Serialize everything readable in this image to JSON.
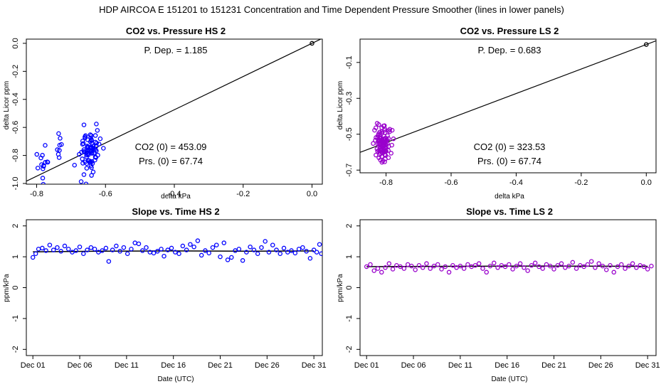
{
  "figure": {
    "title": "HDP    AIRCOA E    151201 to 151231    Concentration and Time Dependent Pressure Smoother (lines in lower panels)"
  },
  "chart_data": [
    {
      "id": "hs-pressure",
      "type": "scatter",
      "title": "CO2 vs. Pressure HS 2",
      "xlabel": "delta kPa",
      "ylabel": "delta Licor ppm",
      "xlim": [
        -0.83,
        0.03
      ],
      "ylim": [
        -1.005,
        0.03
      ],
      "xticks": [
        -0.8,
        -0.6,
        -0.4,
        -0.2,
        0.0
      ],
      "xtick_labels": [
        "-0.8",
        "-0.6",
        "-0.4",
        "-0.2",
        "0.0"
      ],
      "yticks": [
        0.0,
        -0.2,
        -0.4,
        -0.6,
        -0.8,
        -1.0
      ],
      "ytick_labels": [
        "0.0",
        "-0.2",
        "-0.4",
        "-0.6",
        "-0.8",
        "-1.0"
      ],
      "point_color": "#0000ff",
      "origin_point": [
        0.0,
        0.0
      ],
      "fit_line": {
        "slope": 1.185,
        "intercept": 0.0
      },
      "annotations": {
        "dep": "P. Dep. =  1.185",
        "co2": "CO2 (0) =  453.09",
        "prs": "Prs. (0) =  67.74"
      },
      "clusters": [
        {
          "cx": -0.78,
          "sx": 0.012,
          "cy": -0.84,
          "sy": 0.07,
          "n": 14
        },
        {
          "cx": -0.735,
          "sx": 0.004,
          "cy": -0.72,
          "sy": 0.06,
          "n": 8
        },
        {
          "cx": -0.645,
          "sx": 0.014,
          "cy": -0.77,
          "sy": 0.08,
          "n": 80
        }
      ]
    },
    {
      "id": "ls-pressure",
      "type": "scatter",
      "title": "CO2 vs. Pressure LS 2",
      "xlabel": "delta kPa",
      "ylabel": "delta Licor ppm",
      "xlim": [
        -0.88,
        0.03
      ],
      "ylim": [
        -0.715,
        0.03
      ],
      "xticks": [
        -0.8,
        -0.6,
        -0.4,
        -0.2,
        0.0
      ],
      "xtick_labels": [
        "-0.8",
        "-0.6",
        "-0.4",
        "-0.2",
        "0.0"
      ],
      "yticks": [
        -0.1,
        -0.3,
        -0.5,
        -0.7
      ],
      "ytick_labels": [
        "-0.1",
        "-0.3",
        "-0.5",
        "-0.7"
      ],
      "point_color": "#9900cc",
      "origin_point": [
        0.0,
        0.0
      ],
      "fit_line": {
        "slope": 0.683,
        "intercept": 0.0
      },
      "annotations": {
        "dep": "P. Dep. =  0.683",
        "co2": "CO2 (0) =  323.53",
        "prs": "Prs. (0) =  67.74"
      },
      "clusters": [
        {
          "cx": -0.81,
          "sx": 0.012,
          "cy": -0.55,
          "sy": 0.05,
          "n": 110
        }
      ]
    },
    {
      "id": "hs-slope",
      "type": "scatter",
      "title": "Slope vs. Time HS 2",
      "xlabel": "Date (UTC)",
      "ylabel": "ppm/kPa",
      "xlim": [
        0.3,
        31.9
      ],
      "ylim": [
        -2.2,
        2.2
      ],
      "xticks": [
        1,
        6,
        11,
        16,
        21,
        26,
        31
      ],
      "xtick_labels": [
        "Dec 01",
        "Dec 06",
        "Dec 11",
        "Dec 16",
        "Dec 21",
        "Dec 26",
        "Dec 31"
      ],
      "yticks": [
        2,
        1,
        0,
        -1,
        -2
      ],
      "ytick_labels": [
        "2",
        "1",
        "0",
        "-1",
        "-2"
      ],
      "point_color": "#0000ff",
      "smoother": [
        [
          1.0,
          1.16
        ],
        [
          8.0,
          1.18
        ],
        [
          16.0,
          1.19
        ],
        [
          24.0,
          1.18
        ],
        [
          31.0,
          1.19
        ]
      ],
      "series": [
        {
          "x": 1.0,
          "y": 0.98
        },
        {
          "x": 1.3,
          "y": 1.1
        },
        {
          "x": 1.6,
          "y": 1.25
        },
        {
          "x": 2.0,
          "y": 1.28
        },
        {
          "x": 2.4,
          "y": 1.2
        },
        {
          "x": 2.8,
          "y": 1.38
        },
        {
          "x": 3.2,
          "y": 1.22
        },
        {
          "x": 3.6,
          "y": 1.3
        },
        {
          "x": 4.0,
          "y": 1.18
        },
        {
          "x": 4.4,
          "y": 1.35
        },
        {
          "x": 4.8,
          "y": 1.25
        },
        {
          "x": 5.2,
          "y": 1.15
        },
        {
          "x": 5.6,
          "y": 1.2
        },
        {
          "x": 6.0,
          "y": 1.32
        },
        {
          "x": 6.4,
          "y": 1.1
        },
        {
          "x": 6.8,
          "y": 1.22
        },
        {
          "x": 7.2,
          "y": 1.3
        },
        {
          "x": 7.6,
          "y": 1.25
        },
        {
          "x": 8.0,
          "y": 1.15
        },
        {
          "x": 8.4,
          "y": 1.2
        },
        {
          "x": 8.8,
          "y": 1.28
        },
        {
          "x": 9.1,
          "y": 0.85
        },
        {
          "x": 9.5,
          "y": 1.22
        },
        {
          "x": 9.9,
          "y": 1.35
        },
        {
          "x": 10.3,
          "y": 1.18
        },
        {
          "x": 10.7,
          "y": 1.3
        },
        {
          "x": 11.1,
          "y": 1.1
        },
        {
          "x": 11.5,
          "y": 1.25
        },
        {
          "x": 11.9,
          "y": 1.45
        },
        {
          "x": 12.3,
          "y": 1.42
        },
        {
          "x": 12.7,
          "y": 1.2
        },
        {
          "x": 13.1,
          "y": 1.3
        },
        {
          "x": 13.5,
          "y": 1.15
        },
        {
          "x": 13.9,
          "y": 1.12
        },
        {
          "x": 14.3,
          "y": 1.18
        },
        {
          "x": 14.7,
          "y": 1.25
        },
        {
          "x": 15.0,
          "y": 1.02
        },
        {
          "x": 15.4,
          "y": 1.22
        },
        {
          "x": 15.8,
          "y": 1.28
        },
        {
          "x": 16.2,
          "y": 1.15
        },
        {
          "x": 16.6,
          "y": 1.1
        },
        {
          "x": 17.0,
          "y": 1.35
        },
        {
          "x": 17.4,
          "y": 1.22
        },
        {
          "x": 17.8,
          "y": 1.4
        },
        {
          "x": 18.2,
          "y": 1.32
        },
        {
          "x": 18.6,
          "y": 1.52
        },
        {
          "x": 19.0,
          "y": 1.05
        },
        {
          "x": 19.4,
          "y": 1.2
        },
        {
          "x": 19.8,
          "y": 1.12
        },
        {
          "x": 20.2,
          "y": 1.3
        },
        {
          "x": 20.6,
          "y": 1.38
        },
        {
          "x": 21.0,
          "y": 1.0
        },
        {
          "x": 21.4,
          "y": 1.45
        },
        {
          "x": 21.8,
          "y": 0.9
        },
        {
          "x": 22.2,
          "y": 0.98
        },
        {
          "x": 22.6,
          "y": 1.2
        },
        {
          "x": 23.0,
          "y": 1.25
        },
        {
          "x": 23.4,
          "y": 0.88
        },
        {
          "x": 23.8,
          "y": 1.15
        },
        {
          "x": 24.2,
          "y": 1.32
        },
        {
          "x": 24.6,
          "y": 1.22
        },
        {
          "x": 25.0,
          "y": 1.1
        },
        {
          "x": 25.4,
          "y": 1.3
        },
        {
          "x": 25.8,
          "y": 1.5
        },
        {
          "x": 26.2,
          "y": 1.15
        },
        {
          "x": 26.6,
          "y": 1.38
        },
        {
          "x": 27.0,
          "y": 1.22
        },
        {
          "x": 27.4,
          "y": 1.1
        },
        {
          "x": 27.8,
          "y": 1.28
        },
        {
          "x": 28.2,
          "y": 1.15
        },
        {
          "x": 28.6,
          "y": 1.2
        },
        {
          "x": 29.0,
          "y": 1.12
        },
        {
          "x": 29.4,
          "y": 1.25
        },
        {
          "x": 29.8,
          "y": 1.3
        },
        {
          "x": 30.2,
          "y": 1.18
        },
        {
          "x": 30.6,
          "y": 0.95
        },
        {
          "x": 31.0,
          "y": 1.22
        },
        {
          "x": 31.3,
          "y": 1.15
        },
        {
          "x": 31.6,
          "y": 1.4
        },
        {
          "x": 31.8,
          "y": 1.1
        }
      ]
    },
    {
      "id": "ls-slope",
      "type": "scatter",
      "title": "Slope vs. Time LS 2",
      "xlabel": "Date (UTC)",
      "ylabel": "ppm/kPa",
      "xlim": [
        0.3,
        31.9
      ],
      "ylim": [
        -2.2,
        2.2
      ],
      "xticks": [
        1,
        6,
        11,
        16,
        21,
        26,
        31
      ],
      "xtick_labels": [
        "Dec 01",
        "Dec 06",
        "Dec 11",
        "Dec 16",
        "Dec 21",
        "Dec 26",
        "Dec 31"
      ],
      "yticks": [
        2,
        1,
        0,
        -1,
        -2
      ],
      "ytick_labels": [
        "2",
        "1",
        "0",
        "-1",
        "-2"
      ],
      "point_color": "#9900cc",
      "smoother": [
        [
          1.0,
          0.68
        ],
        [
          10.0,
          0.69
        ],
        [
          20.0,
          0.7
        ],
        [
          31.0,
          0.69
        ]
      ],
      "series": [
        {
          "x": 1.0,
          "y": 0.68
        },
        {
          "x": 1.4,
          "y": 0.75
        },
        {
          "x": 1.8,
          "y": 0.55
        },
        {
          "x": 2.2,
          "y": 0.62
        },
        {
          "x": 2.6,
          "y": 0.5
        },
        {
          "x": 3.0,
          "y": 0.65
        },
        {
          "x": 3.4,
          "y": 0.78
        },
        {
          "x": 3.8,
          "y": 0.6
        },
        {
          "x": 4.2,
          "y": 0.72
        },
        {
          "x": 4.6,
          "y": 0.68
        },
        {
          "x": 5.0,
          "y": 0.62
        },
        {
          "x": 5.4,
          "y": 0.75
        },
        {
          "x": 5.8,
          "y": 0.7
        },
        {
          "x": 6.2,
          "y": 0.58
        },
        {
          "x": 6.6,
          "y": 0.72
        },
        {
          "x": 7.0,
          "y": 0.65
        },
        {
          "x": 7.4,
          "y": 0.78
        },
        {
          "x": 7.8,
          "y": 0.62
        },
        {
          "x": 8.2,
          "y": 0.7
        },
        {
          "x": 8.6,
          "y": 0.75
        },
        {
          "x": 9.0,
          "y": 0.6
        },
        {
          "x": 9.4,
          "y": 0.68
        },
        {
          "x": 9.8,
          "y": 0.5
        },
        {
          "x": 10.2,
          "y": 0.72
        },
        {
          "x": 10.6,
          "y": 0.65
        },
        {
          "x": 11.0,
          "y": 0.7
        },
        {
          "x": 11.4,
          "y": 0.62
        },
        {
          "x": 11.8,
          "y": 0.75
        },
        {
          "x": 12.2,
          "y": 0.68
        },
        {
          "x": 12.6,
          "y": 0.72
        },
        {
          "x": 13.0,
          "y": 0.78
        },
        {
          "x": 13.4,
          "y": 0.62
        },
        {
          "x": 13.8,
          "y": 0.5
        },
        {
          "x": 14.2,
          "y": 0.7
        },
        {
          "x": 14.6,
          "y": 0.8
        },
        {
          "x": 15.0,
          "y": 0.65
        },
        {
          "x": 15.4,
          "y": 0.72
        },
        {
          "x": 15.8,
          "y": 0.68
        },
        {
          "x": 16.2,
          "y": 0.75
        },
        {
          "x": 16.6,
          "y": 0.6
        },
        {
          "x": 17.0,
          "y": 0.7
        },
        {
          "x": 17.4,
          "y": 0.78
        },
        {
          "x": 17.8,
          "y": 0.65
        },
        {
          "x": 18.2,
          "y": 0.55
        },
        {
          "x": 18.6,
          "y": 0.72
        },
        {
          "x": 19.0,
          "y": 0.8
        },
        {
          "x": 19.4,
          "y": 0.68
        },
        {
          "x": 19.8,
          "y": 0.62
        },
        {
          "x": 20.2,
          "y": 0.75
        },
        {
          "x": 20.6,
          "y": 0.7
        },
        {
          "x": 21.0,
          "y": 0.6
        },
        {
          "x": 21.4,
          "y": 0.72
        },
        {
          "x": 21.8,
          "y": 0.78
        },
        {
          "x": 22.2,
          "y": 0.65
        },
        {
          "x": 22.6,
          "y": 0.7
        },
        {
          "x": 23.0,
          "y": 0.82
        },
        {
          "x": 23.4,
          "y": 0.62
        },
        {
          "x": 23.8,
          "y": 0.72
        },
        {
          "x": 24.2,
          "y": 0.68
        },
        {
          "x": 24.6,
          "y": 0.75
        },
        {
          "x": 25.0,
          "y": 0.85
        },
        {
          "x": 25.4,
          "y": 0.65
        },
        {
          "x": 25.8,
          "y": 0.78
        },
        {
          "x": 26.2,
          "y": 0.7
        },
        {
          "x": 26.6,
          "y": 0.58
        },
        {
          "x": 27.0,
          "y": 0.72
        },
        {
          "x": 27.4,
          "y": 0.5
        },
        {
          "x": 27.8,
          "y": 0.68
        },
        {
          "x": 28.2,
          "y": 0.75
        },
        {
          "x": 28.6,
          "y": 0.62
        },
        {
          "x": 29.0,
          "y": 0.7
        },
        {
          "x": 29.4,
          "y": 0.78
        },
        {
          "x": 29.8,
          "y": 0.65
        },
        {
          "x": 30.2,
          "y": 0.72
        },
        {
          "x": 30.6,
          "y": 0.68
        },
        {
          "x": 31.0,
          "y": 0.6
        },
        {
          "x": 31.4,
          "y": 0.7
        }
      ]
    }
  ]
}
